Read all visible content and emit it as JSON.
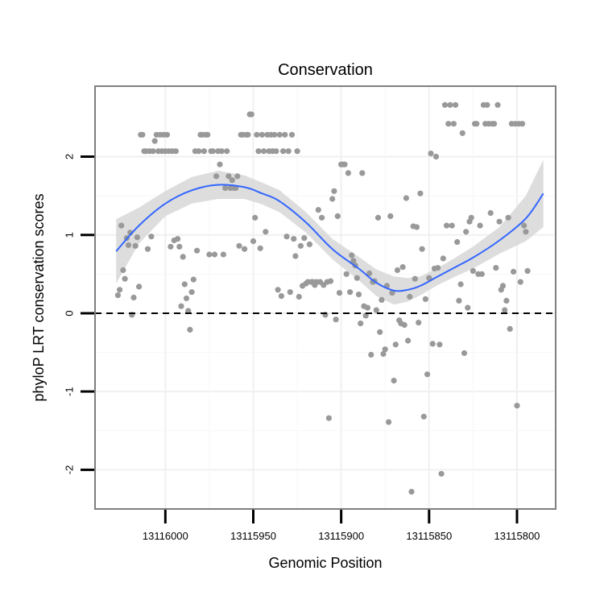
{
  "chart_data": {
    "type": "scatter",
    "title": "Conservation",
    "xlabel": "Genomic Position",
    "ylabel": "phyloP LRT conservation scores",
    "x_reversed": true,
    "xlim": [
      13116040,
      13115778
    ],
    "ylim": [
      -2.5,
      2.9
    ],
    "x_ticks": [
      13116000,
      13115950,
      13115900,
      13115850,
      13115800
    ],
    "x_tick_labels": [
      "13116000",
      "13115950",
      "13115900",
      "13115850",
      "13115800"
    ],
    "y_ticks": [
      -2,
      -1,
      0,
      1,
      2
    ],
    "y_tick_labels": [
      "-2",
      "-1",
      "0",
      "1",
      "2"
    ],
    "reference_line": {
      "y": 0,
      "style": "dashed"
    },
    "grid": true,
    "colors": {
      "points": "#999999",
      "smooth": "#3366ff",
      "ribbon": "#d9d9d9",
      "panel_border": "#7f7f7f",
      "grid": "#f0f0f0"
    },
    "smooth": {
      "x": [
        13116028,
        13116015,
        13116000,
        13115985,
        13115970,
        13115955,
        13115945,
        13115935,
        13115920,
        13115905,
        13115890,
        13115880,
        13115870,
        13115862,
        13115855,
        13115845,
        13115835,
        13115825,
        13115810,
        13115795,
        13115785
      ],
      "y": [
        0.79,
        1.12,
        1.4,
        1.57,
        1.64,
        1.61,
        1.53,
        1.43,
        1.16,
        0.82,
        0.57,
        0.39,
        0.29,
        0.3,
        0.35,
        0.47,
        0.59,
        0.71,
        0.93,
        1.21,
        1.53
      ],
      "upper": [
        1.2,
        1.35,
        1.56,
        1.74,
        1.82,
        1.76,
        1.67,
        1.57,
        1.29,
        0.95,
        0.72,
        0.56,
        0.47,
        0.45,
        0.47,
        0.58,
        0.71,
        0.85,
        1.1,
        1.5,
        1.96
      ],
      "lower": [
        0.38,
        0.89,
        1.24,
        1.4,
        1.46,
        1.46,
        1.39,
        1.29,
        1.03,
        0.69,
        0.42,
        0.22,
        0.11,
        0.15,
        0.23,
        0.36,
        0.47,
        0.57,
        0.76,
        0.92,
        1.1
      ]
    },
    "points": [
      {
        "x": 13116027,
        "y": 0.23
      },
      {
        "x": 13116026,
        "y": 0.3
      },
      {
        "x": 13116025,
        "y": 1.12
      },
      {
        "x": 13116024,
        "y": 0.55
      },
      {
        "x": 13116023,
        "y": 0.44
      },
      {
        "x": 13116022,
        "y": 0.96
      },
      {
        "x": 13116021,
        "y": 0.87
      },
      {
        "x": 13116020,
        "y": 1.03
      },
      {
        "x": 13116019,
        "y": -0.02
      },
      {
        "x": 13116018,
        "y": 0.2
      },
      {
        "x": 13116017,
        "y": 0.86
      },
      {
        "x": 13116016,
        "y": 0.97
      },
      {
        "x": 13116015,
        "y": 0.34
      },
      {
        "x": 13116014,
        "y": 2.28
      },
      {
        "x": 13116013,
        "y": 2.28
      },
      {
        "x": 13116012,
        "y": 2.07
      },
      {
        "x": 13116011,
        "y": 2.07
      },
      {
        "x": 13116010,
        "y": 0.82
      },
      {
        "x": 13116009,
        "y": 2.07
      },
      {
        "x": 13116008,
        "y": 0.98
      },
      {
        "x": 13116007,
        "y": 2.07
      },
      {
        "x": 13116006,
        "y": 2.2
      },
      {
        "x": 13116005,
        "y": 2.28
      },
      {
        "x": 13116004,
        "y": 2.07
      },
      {
        "x": 13116003,
        "y": 2.28
      },
      {
        "x": 13116002,
        "y": 2.07
      },
      {
        "x": 13116001,
        "y": 2.28
      },
      {
        "x": 13116000,
        "y": 2.07
      },
      {
        "x": 13115999,
        "y": 2.28
      },
      {
        "x": 13115998,
        "y": 2.07
      },
      {
        "x": 13115997,
        "y": 0.85
      },
      {
        "x": 13115996,
        "y": 2.07
      },
      {
        "x": 13115995,
        "y": 0.93
      },
      {
        "x": 13115994,
        "y": 2.07
      },
      {
        "x": 13115993,
        "y": 0.95
      },
      {
        "x": 13115992,
        "y": 0.85
      },
      {
        "x": 13115991,
        "y": 0.09
      },
      {
        "x": 13115990,
        "y": 0.72
      },
      {
        "x": 13115989,
        "y": 0.37
      },
      {
        "x": 13115988,
        "y": 0.19
      },
      {
        "x": 13115987,
        "y": 0.03
      },
      {
        "x": 13115986,
        "y": -0.21
      },
      {
        "x": 13115985,
        "y": 0.27
      },
      {
        "x": 13115984,
        "y": 0.43
      },
      {
        "x": 13115983,
        "y": 2.07
      },
      {
        "x": 13115982,
        "y": 0.8
      },
      {
        "x": 13115981,
        "y": 2.07
      },
      {
        "x": 13115980,
        "y": 2.28
      },
      {
        "x": 13115979,
        "y": 2.28
      },
      {
        "x": 13115978,
        "y": 2.07
      },
      {
        "x": 13115977,
        "y": 2.28
      },
      {
        "x": 13115976,
        "y": 2.28
      },
      {
        "x": 13115975,
        "y": 0.75
      },
      {
        "x": 13115974,
        "y": 2.07
      },
      {
        "x": 13115973,
        "y": 2.07
      },
      {
        "x": 13115972,
        "y": 0.75
      },
      {
        "x": 13115971,
        "y": 1.75
      },
      {
        "x": 13115970,
        "y": 2.07
      },
      {
        "x": 13115969,
        "y": 1.9
      },
      {
        "x": 13115968,
        "y": 2.07
      },
      {
        "x": 13115967,
        "y": 0.75
      },
      {
        "x": 13115966,
        "y": 1.6
      },
      {
        "x": 13115965,
        "y": 2.07
      },
      {
        "x": 13115964,
        "y": 1.75
      },
      {
        "x": 13115963,
        "y": 1.6
      },
      {
        "x": 13115962,
        "y": 1.7
      },
      {
        "x": 13115961,
        "y": 1.6
      },
      {
        "x": 13115960,
        "y": 1.6
      },
      {
        "x": 13115959,
        "y": 1.75
      },
      {
        "x": 13115958,
        "y": 0.86
      },
      {
        "x": 13115957,
        "y": 2.28
      },
      {
        "x": 13115956,
        "y": 2.28
      },
      {
        "x": 13115955,
        "y": 0.82
      },
      {
        "x": 13115954,
        "y": 2.28
      },
      {
        "x": 13115953,
        "y": 2.28
      },
      {
        "x": 13115952,
        "y": 2.54
      },
      {
        "x": 13115951,
        "y": 2.54
      },
      {
        "x": 13115950,
        "y": 0.92
      },
      {
        "x": 13115949,
        "y": 1.22
      },
      {
        "x": 13115948,
        "y": 2.28
      },
      {
        "x": 13115947,
        "y": 2.07
      },
      {
        "x": 13115946,
        "y": 0.83
      },
      {
        "x": 13115945,
        "y": 2.28
      },
      {
        "x": 13115944,
        "y": 2.07
      },
      {
        "x": 13115943,
        "y": 1.04
      },
      {
        "x": 13115942,
        "y": 2.28
      },
      {
        "x": 13115941,
        "y": 2.07
      },
      {
        "x": 13115940,
        "y": 2.28
      },
      {
        "x": 13115939,
        "y": 2.07
      },
      {
        "x": 13115938,
        "y": 2.28
      },
      {
        "x": 13115937,
        "y": 2.07
      },
      {
        "x": 13115936,
        "y": 0.3
      },
      {
        "x": 13115935,
        "y": 2.28
      },
      {
        "x": 13115934,
        "y": 0.22
      },
      {
        "x": 13115933,
        "y": 2.07
      },
      {
        "x": 13115932,
        "y": 2.28
      },
      {
        "x": 13115931,
        "y": 0.98
      },
      {
        "x": 13115930,
        "y": 2.07
      },
      {
        "x": 13115929,
        "y": 0.27
      },
      {
        "x": 13115928,
        "y": 2.28
      },
      {
        "x": 13115927,
        "y": 0.95
      },
      {
        "x": 13115926,
        "y": 0.73
      },
      {
        "x": 13115925,
        "y": 2.07
      },
      {
        "x": 13115924,
        "y": 0.21
      },
      {
        "x": 13115923,
        "y": 0.86
      },
      {
        "x": 13115922,
        "y": 0.35
      },
      {
        "x": 13115921,
        "y": 0.96
      },
      {
        "x": 13115920,
        "y": 0.38
      },
      {
        "x": 13115919,
        "y": 0.4
      },
      {
        "x": 13115918,
        "y": 0.88
      },
      {
        "x": 13115917,
        "y": 0.4
      },
      {
        "x": 13115916,
        "y": 0.4
      },
      {
        "x": 13115915,
        "y": 0.36
      },
      {
        "x": 13115914,
        "y": 0.4
      },
      {
        "x": 13115913,
        "y": 1.32
      },
      {
        "x": 13115912,
        "y": 0.4
      },
      {
        "x": 13115911,
        "y": 1.22
      },
      {
        "x": 13115910,
        "y": 0.36
      },
      {
        "x": 13115909,
        "y": -0.02
      },
      {
        "x": 13115908,
        "y": 0.4
      },
      {
        "x": 13115907,
        "y": -1.34
      },
      {
        "x": 13115906,
        "y": 0.41
      },
      {
        "x": 13115905,
        "y": 1.46
      },
      {
        "x": 13115904,
        "y": 1.56
      },
      {
        "x": 13115903,
        "y": -0.08
      },
      {
        "x": 13115902,
        "y": 1.24
      },
      {
        "x": 13115901,
        "y": 0.26
      },
      {
        "x": 13115900,
        "y": 1.9
      },
      {
        "x": 13115899,
        "y": 1.9
      },
      {
        "x": 13115898,
        "y": 1.9
      },
      {
        "x": 13115897,
        "y": 0.5
      },
      {
        "x": 13115896,
        "y": 1.79
      },
      {
        "x": 13115895,
        "y": 0.27
      },
      {
        "x": 13115894,
        "y": 0.74
      },
      {
        "x": 13115893,
        "y": 0.67
      },
      {
        "x": 13115892,
        "y": 0.61
      },
      {
        "x": 13115891,
        "y": 0.45
      },
      {
        "x": 13115890,
        "y": 0.24
      },
      {
        "x": 13115889,
        "y": -0.13
      },
      {
        "x": 13115888,
        "y": 1.79
      },
      {
        "x": 13115887,
        "y": 0.09
      },
      {
        "x": 13115886,
        "y": -0.03
      },
      {
        "x": 13115885,
        "y": 0.07
      },
      {
        "x": 13115884,
        "y": 0.51
      },
      {
        "x": 13115883,
        "y": -0.53
      },
      {
        "x": 13115882,
        "y": 0.4
      },
      {
        "x": 13115881,
        "y": 0.41
      },
      {
        "x": 13115880,
        "y": 0.04
      },
      {
        "x": 13115879,
        "y": 1.22
      },
      {
        "x": 13115878,
        "y": -0.24
      },
      {
        "x": 13115877,
        "y": 0.17
      },
      {
        "x": 13115876,
        "y": -0.52
      },
      {
        "x": 13115875,
        "y": -0.46
      },
      {
        "x": 13115874,
        "y": 0.35
      },
      {
        "x": 13115873,
        "y": -1.39
      },
      {
        "x": 13115872,
        "y": 1.24
      },
      {
        "x": 13115871,
        "y": 0.26
      },
      {
        "x": 13115870,
        "y": -0.86
      },
      {
        "x": 13115869,
        "y": -0.4
      },
      {
        "x": 13115868,
        "y": 0.55
      },
      {
        "x": 13115867,
        "y": -0.09
      },
      {
        "x": 13115866,
        "y": -0.13
      },
      {
        "x": 13115865,
        "y": 0.59
      },
      {
        "x": 13115864,
        "y": -0.15
      },
      {
        "x": 13115863,
        "y": 1.47
      },
      {
        "x": 13115862,
        "y": -0.35
      },
      {
        "x": 13115861,
        "y": 0.21
      },
      {
        "x": 13115860,
        "y": -2.28
      },
      {
        "x": 13115859,
        "y": 1.11
      },
      {
        "x": 13115858,
        "y": 0.44
      },
      {
        "x": 13115857,
        "y": 1.1
      },
      {
        "x": 13115856,
        "y": -0.12
      },
      {
        "x": 13115855,
        "y": 1.53
      },
      {
        "x": 13115854,
        "y": 0.82
      },
      {
        "x": 13115853,
        "y": -1.32
      },
      {
        "x": 13115852,
        "y": 0.18
      },
      {
        "x": 13115851,
        "y": -0.78
      },
      {
        "x": 13115850,
        "y": 0.45
      },
      {
        "x": 13115849,
        "y": 2.04
      },
      {
        "x": 13115848,
        "y": -0.39
      },
      {
        "x": 13115847,
        "y": 0.57
      },
      {
        "x": 13115846,
        "y": 2.0
      },
      {
        "x": 13115845,
        "y": 0.58
      },
      {
        "x": 13115844,
        "y": -0.4
      },
      {
        "x": 13115843,
        "y": -2.05
      },
      {
        "x": 13115842,
        "y": 0.7
      },
      {
        "x": 13115841,
        "y": 2.66
      },
      {
        "x": 13115840,
        "y": 1.12
      },
      {
        "x": 13115839,
        "y": 2.42
      },
      {
        "x": 13115838,
        "y": 2.66
      },
      {
        "x": 13115837,
        "y": 1.12
      },
      {
        "x": 13115836,
        "y": 2.42
      },
      {
        "x": 13115835,
        "y": 2.66
      },
      {
        "x": 13115834,
        "y": 0.91
      },
      {
        "x": 13115833,
        "y": 0.16
      },
      {
        "x": 13115832,
        "y": 0.37
      },
      {
        "x": 13115831,
        "y": 2.3
      },
      {
        "x": 13115830,
        "y": -0.51
      },
      {
        "x": 13115829,
        "y": 1.04
      },
      {
        "x": 13115828,
        "y": 0.07
      },
      {
        "x": 13115827,
        "y": 1.17
      },
      {
        "x": 13115826,
        "y": 1.22
      },
      {
        "x": 13115825,
        "y": 0.54
      },
      {
        "x": 13115824,
        "y": 2.42
      },
      {
        "x": 13115823,
        "y": 2.42
      },
      {
        "x": 13115822,
        "y": 0.5
      },
      {
        "x": 13115821,
        "y": 1.12
      },
      {
        "x": 13115820,
        "y": 0.5
      },
      {
        "x": 13115819,
        "y": 2.66
      },
      {
        "x": 13115818,
        "y": 2.42
      },
      {
        "x": 13115817,
        "y": 2.66
      },
      {
        "x": 13115816,
        "y": 2.42
      },
      {
        "x": 13115815,
        "y": 1.28
      },
      {
        "x": 13115814,
        "y": 2.42
      },
      {
        "x": 13115813,
        "y": 2.42
      },
      {
        "x": 13115812,
        "y": 0.58
      },
      {
        "x": 13115811,
        "y": 2.66
      },
      {
        "x": 13115810,
        "y": 1.17
      },
      {
        "x": 13115809,
        "y": 0.3
      },
      {
        "x": 13115808,
        "y": 0.35
      },
      {
        "x": 13115807,
        "y": 0.04
      },
      {
        "x": 13115806,
        "y": 0.16
      },
      {
        "x": 13115805,
        "y": 1.22
      },
      {
        "x": 13115804,
        "y": -0.2
      },
      {
        "x": 13115803,
        "y": 2.42
      },
      {
        "x": 13115802,
        "y": 0.53
      },
      {
        "x": 13115801,
        "y": 2.42
      },
      {
        "x": 13115800,
        "y": -1.18
      },
      {
        "x": 13115799,
        "y": 2.42
      },
      {
        "x": 13115798,
        "y": 0.4
      },
      {
        "x": 13115797,
        "y": 2.42
      },
      {
        "x": 13115796,
        "y": 1.12
      },
      {
        "x": 13115795,
        "y": 1.04
      },
      {
        "x": 13115794,
        "y": 0.54
      }
    ]
  }
}
